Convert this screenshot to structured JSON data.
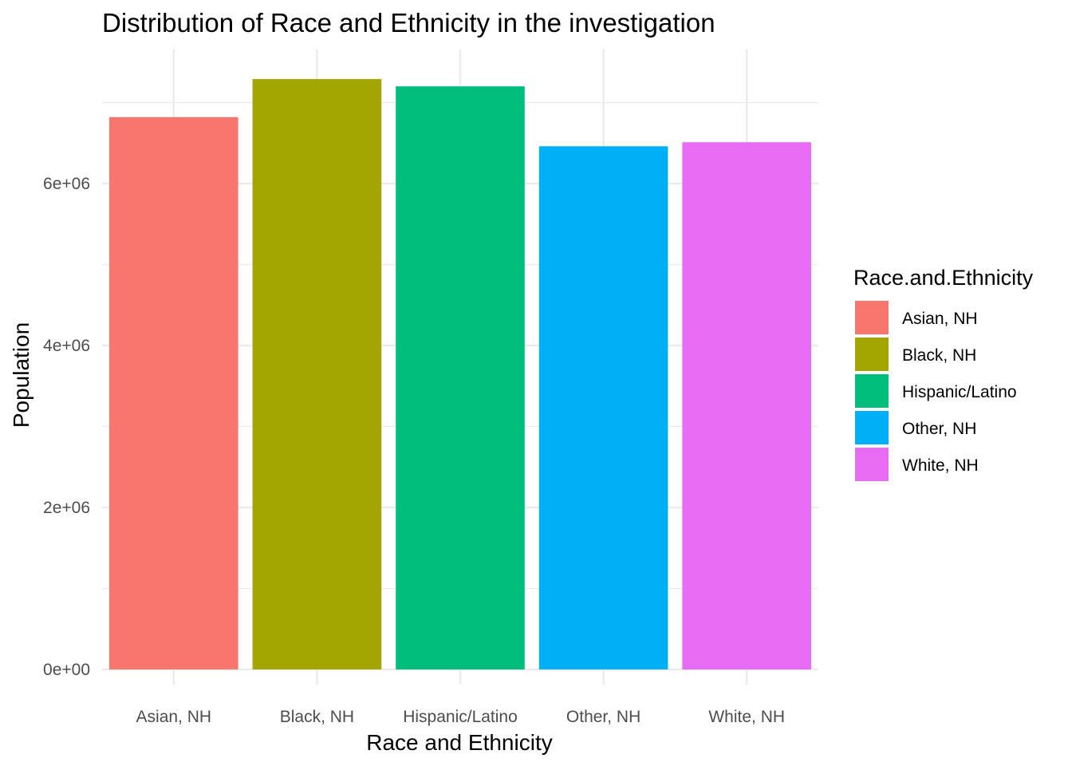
{
  "chart_data": {
    "type": "bar",
    "title": "Distribution of Race and Ethnicity in the investigation",
    "xlabel": "Race and Ethnicity",
    "ylabel": "Population",
    "categories": [
      "Asian, NH",
      "Black, NH",
      "Hispanic/Latino",
      "Other, NH",
      "White, NH"
    ],
    "values": [
      6820000,
      7290000,
      7200000,
      6460000,
      6510000
    ],
    "colors": [
      "#F8766D",
      "#A3A500",
      "#00BF7D",
      "#00B0F6",
      "#E76BF3"
    ],
    "ylim": [
      0,
      7650000
    ],
    "y_ticks": [
      0,
      2000000,
      4000000,
      6000000
    ],
    "y_tick_labels": [
      "0e+00",
      "2e+06",
      "4e+06",
      "6e+06"
    ],
    "grid": true,
    "legend": {
      "title": "Race.and.Ethnicity",
      "placement": "right",
      "entries": [
        "Asian, NH",
        "Black, NH",
        "Hispanic/Latino",
        "Other, NH",
        "White, NH"
      ]
    }
  }
}
